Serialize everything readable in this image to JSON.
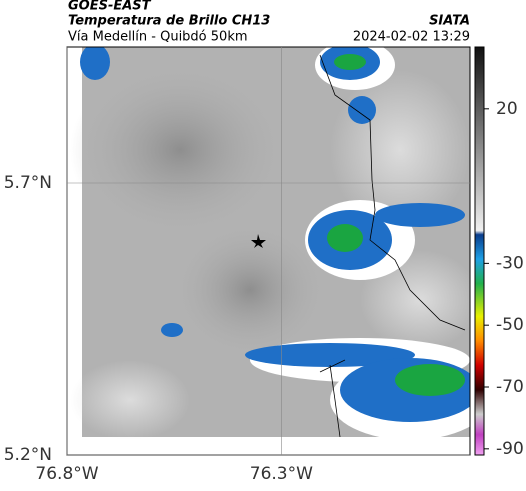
{
  "header": {
    "satellite": "GOES-EAST",
    "product": "Temperatura de Brillo CH13",
    "source": "SIATA",
    "region": "Vía Medellín - Quibdó 50km",
    "timestamp": "2024-02-02 13:29"
  },
  "map": {
    "xlim": [
      -76.8,
      -75.86
    ],
    "ylim": [
      5.2,
      5.95
    ],
    "xticks": [
      {
        "value": -76.8,
        "label": "76.8°W"
      },
      {
        "value": -76.3,
        "label": "76.3°W"
      }
    ],
    "yticks": [
      {
        "value": 5.2,
        "label": "5.2°N"
      },
      {
        "value": 5.7,
        "label": "5.7°N"
      }
    ]
  },
  "colorbar": {
    "lim": [
      40,
      -92
    ],
    "ticks": [
      20,
      -30,
      -50,
      -70,
      -90
    ]
  }
}
